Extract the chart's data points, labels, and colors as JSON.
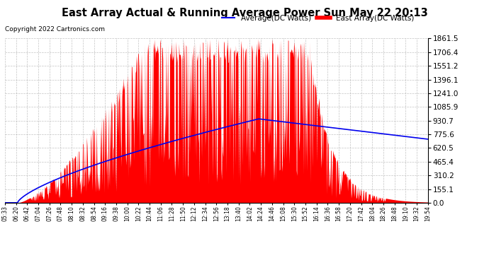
{
  "title": "East Array Actual & Running Average Power Sun May 22 20:13",
  "copyright": "Copyright 2022 Cartronics.com",
  "legend_avg": "Average(DC Watts)",
  "legend_east": "East Array(DC Watts)",
  "y_min": 0.0,
  "y_max": 1861.5,
  "y_ticks": [
    0.0,
    155.1,
    310.2,
    465.4,
    620.5,
    775.6,
    930.7,
    1085.9,
    1241.0,
    1396.1,
    1551.2,
    1706.4,
    1861.5
  ],
  "x_labels": [
    "05:33",
    "06:20",
    "06:42",
    "07:04",
    "07:26",
    "07:48",
    "08:10",
    "08:32",
    "08:54",
    "09:16",
    "09:38",
    "10:00",
    "10:22",
    "10:44",
    "11:06",
    "11:28",
    "11:50",
    "12:12",
    "12:34",
    "12:56",
    "13:18",
    "13:40",
    "14:02",
    "14:24",
    "14:46",
    "15:08",
    "15:30",
    "15:52",
    "16:14",
    "16:36",
    "16:58",
    "17:20",
    "17:42",
    "18:04",
    "18:26",
    "18:48",
    "19:10",
    "19:32",
    "19:54"
  ],
  "color_east": "#ff0000",
  "color_avg": "#0000ee",
  "color_bg": "#ffffff",
  "color_grid": "#aaaaaa",
  "title_color": "#000000",
  "copyright_color": "#000000",
  "legend_avg_color": "#0000ee",
  "legend_east_color": "#ff0000"
}
